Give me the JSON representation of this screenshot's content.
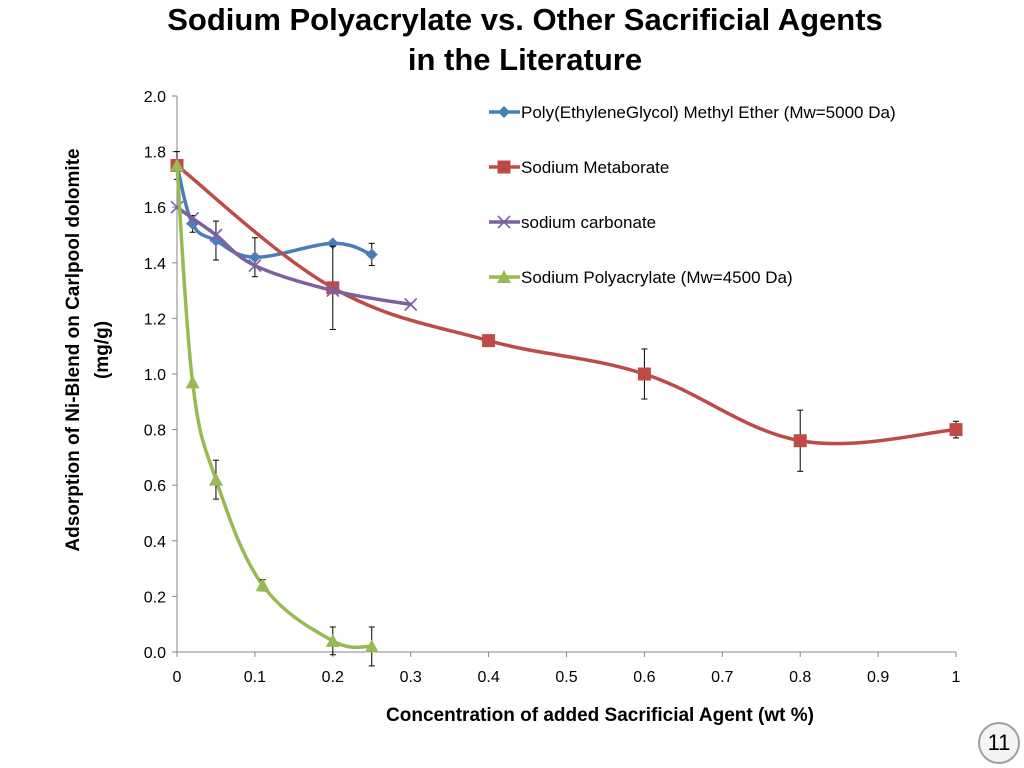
{
  "slide": {
    "title_line1": "Sodium Polyacrylate vs. Other Sacrificial Agents",
    "title_line2": "in the Literature",
    "page_number": "11"
  },
  "chart_data": {
    "type": "line",
    "title": "",
    "xlabel": "Concentration of added Sacrificial Agent (wt %)",
    "ylabel_line1": "Adsorption of Ni-Blend on Carlpool dolomite",
    "ylabel_line2": "(mg/g)",
    "xlim": [
      0,
      1
    ],
    "ylim": [
      0,
      2
    ],
    "x_ticks": [
      "0",
      "0.1",
      "0.2",
      "0.3",
      "0.4",
      "0.5",
      "0.6",
      "0.7",
      "0.8",
      "0.9",
      "1"
    ],
    "y_ticks": [
      "0.0",
      "0.2",
      "0.4",
      "0.6",
      "0.8",
      "1.0",
      "1.2",
      "1.4",
      "1.6",
      "1.8",
      "2.0"
    ],
    "legend_position": "top-right",
    "grid": false,
    "series": [
      {
        "name": "Poly(EthyleneGlycol) Methyl Ether (Mw=5000 Da)",
        "color": "#4a7ebb",
        "marker": "diamond",
        "x": [
          0,
          0.02,
          0.05,
          0.1,
          0.2,
          0.25
        ],
        "y": [
          1.75,
          1.54,
          1.48,
          1.42,
          1.47,
          1.43
        ],
        "err": [
          0.05,
          0.03,
          0.07,
          0.07,
          0.0,
          0.04
        ]
      },
      {
        "name": "Sodium Metaborate",
        "color": "#be4b48",
        "marker": "square",
        "x": [
          0,
          0.2,
          0.4,
          0.6,
          0.8,
          1.0
        ],
        "y": [
          1.75,
          1.31,
          1.12,
          1.0,
          0.76,
          0.8
        ],
        "err": [
          0.0,
          0.15,
          0.0,
          0.09,
          0.11,
          0.03
        ]
      },
      {
        "name": "sodium carbonate",
        "color": "#7d60a0",
        "marker": "x",
        "x": [
          0,
          0.02,
          0.05,
          0.1,
          0.2,
          0.3
        ],
        "y": [
          1.6,
          1.56,
          1.5,
          1.39,
          1.3,
          1.25
        ],
        "err": [
          0.0,
          0.0,
          0.0,
          0.0,
          0.0,
          0.0
        ]
      },
      {
        "name": "Sodium Polyacrylate (Mw=4500 Da)",
        "color": "#98b954",
        "marker": "triangle",
        "x": [
          0,
          0.02,
          0.05,
          0.11,
          0.2,
          0.25
        ],
        "y": [
          1.75,
          0.97,
          0.62,
          0.24,
          0.04,
          0.02
        ],
        "err": [
          0.0,
          0.0,
          0.07,
          0.02,
          0.05,
          0.07
        ]
      }
    ]
  }
}
